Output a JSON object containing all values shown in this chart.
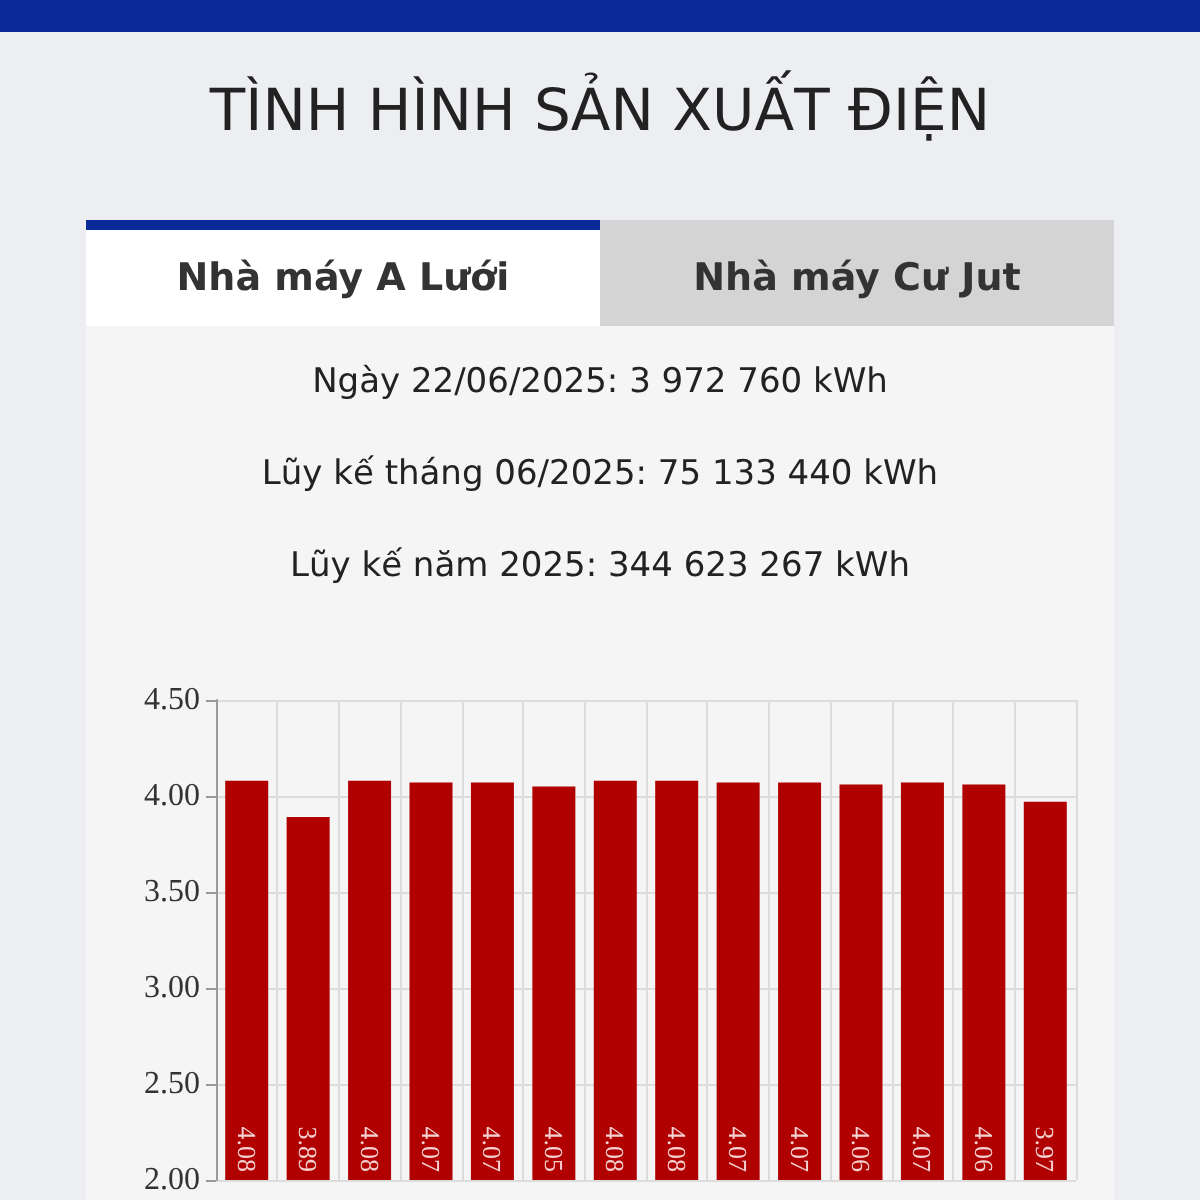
{
  "chart_data": {
    "type": "bar",
    "title": "TÌNH HÌNH SẢN XUẤT ĐIỆN",
    "annotations": [
      "Nhà máy A Lưới",
      "Nhà máy Cư Jut",
      "Ngày 22/06/2025: 3 972 760 kWh",
      "Lũy kế tháng 06/2025: 75 133 440 kWh",
      "Lũy kế năm 2025: 344 623 267 kWh"
    ],
    "categories": [
      null,
      null,
      null,
      null,
      null,
      null,
      null,
      null,
      null,
      null,
      null,
      null,
      null,
      null
    ],
    "values": [
      4.08,
      3.89,
      4.08,
      4.07,
      4.07,
      4.05,
      4.08,
      4.08,
      4.07,
      4.07,
      4.06,
      4.07,
      4.06,
      3.97
    ],
    "color": "#b00000",
    "ylim": [
      2,
      4.5
    ],
    "yticks": [
      {
        "value": 2,
        "label": "2.00"
      },
      {
        "value": 2.5,
        "label": "2.50"
      },
      {
        "value": 3,
        "label": "3.00"
      },
      {
        "value": 3.5,
        "label": "3.50"
      },
      {
        "value": 4,
        "label": "4.00"
      },
      {
        "value": 4.5,
        "label": "4.50"
      }
    ],
    "grid": true,
    "data_labels": true
  }
}
